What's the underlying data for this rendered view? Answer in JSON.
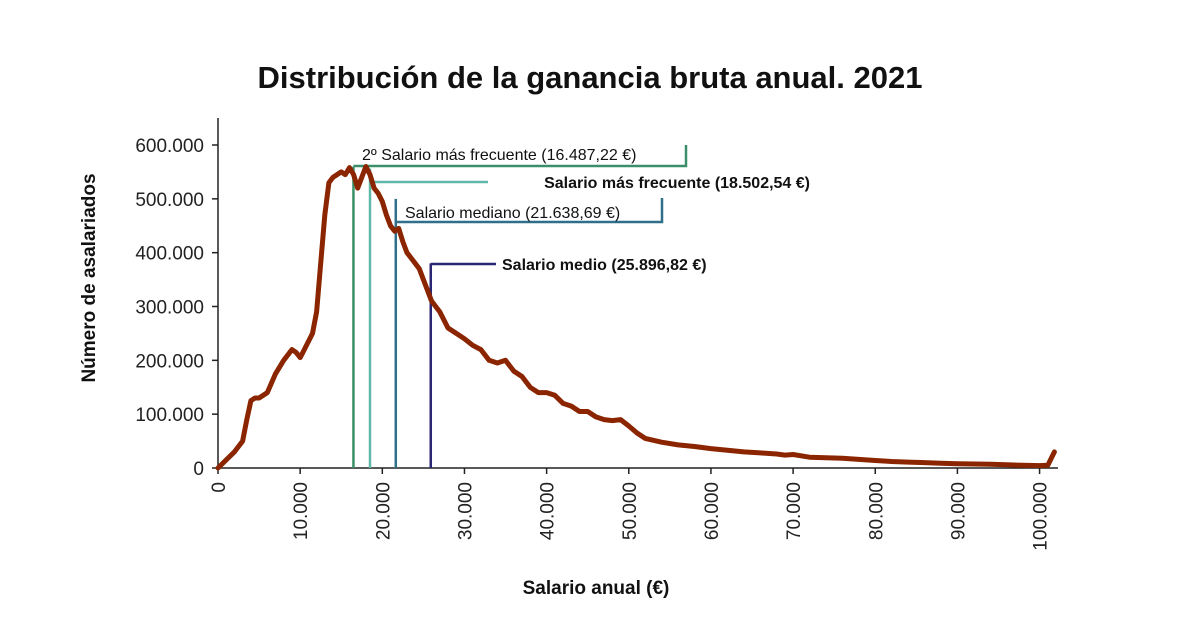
{
  "chart_data": {
    "type": "line",
    "title": "Distribución de la ganancia bruta anual. 2021",
    "xlabel": "Salario anual (€)",
    "ylabel": "Número de asalariados",
    "xlim": [
      0,
      102000
    ],
    "ylim": [
      0,
      600000
    ],
    "x_ticks": [
      0,
      10000,
      20000,
      30000,
      40000,
      50000,
      60000,
      70000,
      80000,
      90000,
      100000
    ],
    "x_tick_labels": [
      "0",
      "10.000",
      "20.000",
      "30.000",
      "40.000",
      "50.000",
      "60.000",
      "70.000",
      "80.000",
      "90.000",
      "100.000"
    ],
    "y_ticks": [
      0,
      100000,
      200000,
      300000,
      400000,
      500000,
      600000
    ],
    "y_tick_labels": [
      "0",
      "100.000",
      "200.000",
      "300.000",
      "400.000",
      "500.000",
      "600.000"
    ],
    "line_color": "#8b2500",
    "series": [
      {
        "x": [
          0,
          1000,
          2000,
          3000,
          3500,
          4000,
          4500,
          5000,
          6000,
          7000,
          8000,
          9000,
          9500,
          10000,
          10500,
          11000,
          11500,
          12000,
          12500,
          13000,
          13500,
          14000,
          14500,
          15000,
          15500,
          16000,
          16500,
          17000,
          17500,
          18000,
          18500,
          19000,
          19500,
          20000,
          20500,
          21000,
          21500,
          22000,
          22500,
          23000,
          23500,
          24000,
          24500,
          25000,
          26000,
          27000,
          28000,
          29000,
          30000,
          31000,
          32000,
          33000,
          34000,
          35000,
          36000,
          37000,
          38000,
          39000,
          40000,
          41000,
          42000,
          43000,
          44000,
          45000,
          46000,
          47000,
          48000,
          49000,
          50000,
          51000,
          52000,
          54000,
          56000,
          58000,
          60000,
          62000,
          64000,
          66000,
          68000,
          69000,
          70000,
          72000,
          74000,
          76000,
          78000,
          80000,
          82000,
          84000,
          86000,
          88000,
          90000,
          92000,
          94000,
          96000,
          98000,
          100000,
          101000,
          101800
        ],
        "y": [
          0,
          15000,
          30000,
          50000,
          90000,
          125000,
          130000,
          130000,
          140000,
          175000,
          200000,
          220000,
          215000,
          205000,
          220000,
          235000,
          250000,
          290000,
          380000,
          470000,
          530000,
          540000,
          545000,
          550000,
          545000,
          558000,
          545000,
          520000,
          540000,
          560000,
          545000,
          520000,
          510000,
          495000,
          470000,
          450000,
          440000,
          445000,
          420000,
          400000,
          390000,
          380000,
          370000,
          350000,
          310000,
          290000,
          260000,
          250000,
          240000,
          228000,
          220000,
          200000,
          195000,
          200000,
          180000,
          170000,
          150000,
          140000,
          140000,
          135000,
          120000,
          115000,
          105000,
          105000,
          95000,
          90000,
          88000,
          90000,
          78000,
          65000,
          55000,
          48000,
          43000,
          40000,
          36000,
          33000,
          30000,
          28000,
          26000,
          24000,
          25000,
          20000,
          19000,
          18000,
          16000,
          14000,
          12000,
          11000,
          10000,
          9000,
          8000,
          7500,
          7000,
          6000,
          5000,
          4500,
          5000,
          30000
        ]
      }
    ],
    "annotations": [
      {
        "label": "2º Salario más frecuente (16.487,22 €)",
        "x": 16487.22,
        "y": 560000,
        "bold": false,
        "color": "#3a8f6a"
      },
      {
        "label": "Salario más frecuente (18.502,54 €)",
        "x": 18502.54,
        "y": 556000,
        "bold": true,
        "color": "#5fb8a8"
      },
      {
        "label": "Salario mediano (21.638,69 €)",
        "x": 21638.69,
        "y": 500000,
        "bold": false,
        "color": "#2f6f89"
      },
      {
        "label": "Salario medio (25.896,82 €)",
        "x": 25896.82,
        "y": 380000,
        "bold": true,
        "color": "#2b2575"
      }
    ]
  }
}
